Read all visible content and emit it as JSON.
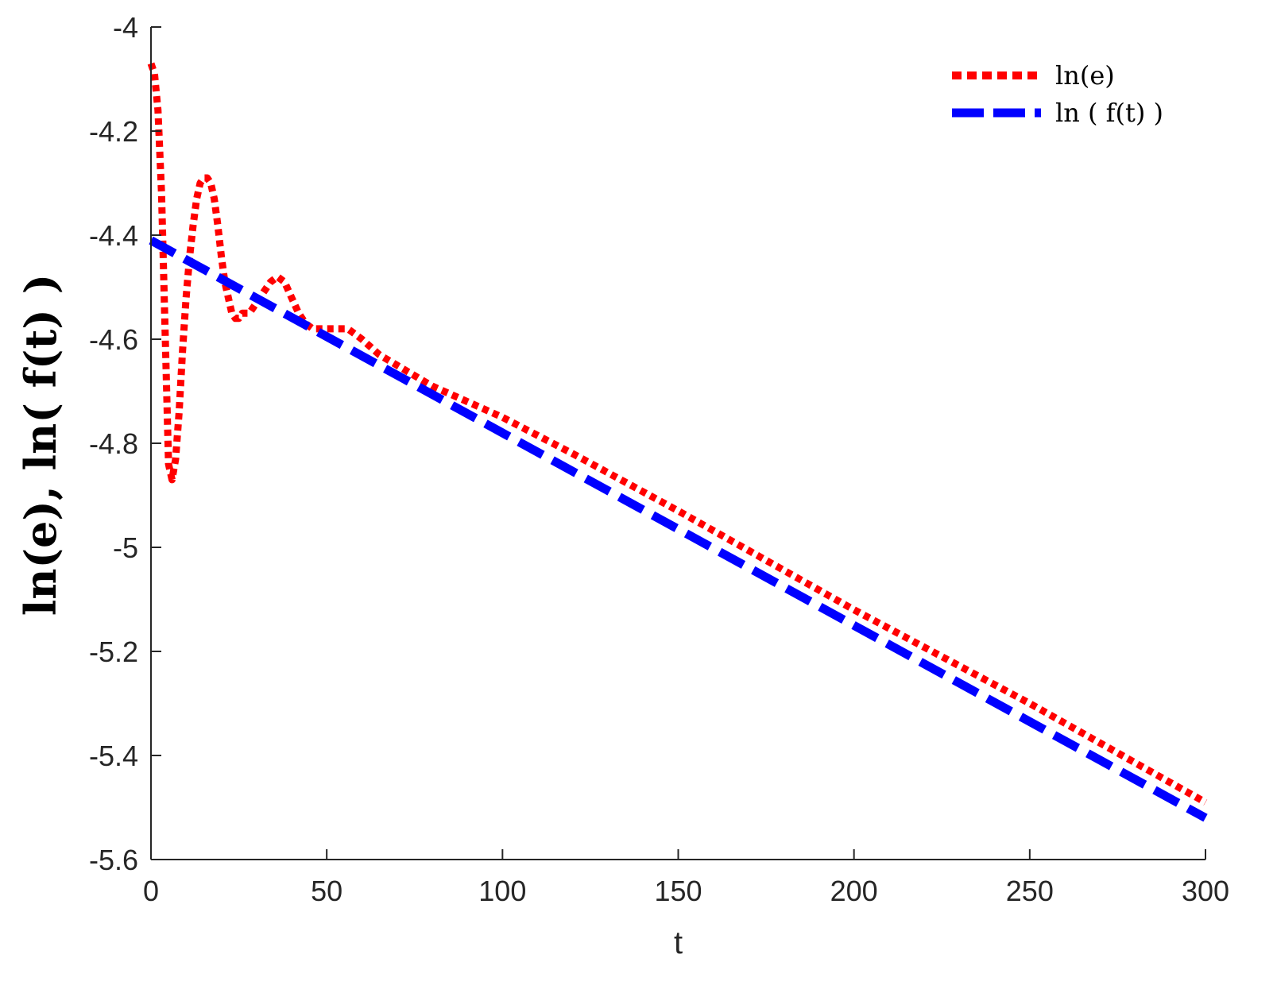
{
  "chart_data": {
    "type": "line",
    "title": "",
    "xlabel": "t",
    "ylabel": "ln(e), ln( f(t) )",
    "xlim": [
      0,
      300
    ],
    "ylim": [
      -5.6,
      -4
    ],
    "xticks": [
      0,
      50,
      100,
      150,
      200,
      250,
      300
    ],
    "yticks": [
      -4,
      -4.2,
      -4.4,
      -4.6,
      -4.8,
      -5,
      -5.2,
      -5.4,
      -5.6
    ],
    "xtick_labels": [
      "0",
      "50",
      "100",
      "150",
      "200",
      "250",
      "300"
    ],
    "ytick_labels": [
      "-4",
      "-4.2",
      "-4.4",
      "-4.6",
      "-4.8",
      "-5",
      "-5.2",
      "-5.4",
      "-5.6"
    ],
    "grid": false,
    "legend_position": "top-right",
    "series": [
      {
        "name": "ln(e)",
        "color": "#ff0000",
        "style": "dotted",
        "x": [
          0,
          1,
          2,
          3,
          4,
          5,
          6,
          7,
          8,
          9,
          10,
          11,
          12,
          13,
          14,
          15,
          16,
          17,
          18,
          19,
          20,
          21,
          22,
          23,
          24,
          25,
          26,
          27,
          28,
          29,
          30,
          32,
          34,
          36,
          38,
          40,
          42,
          44,
          46,
          48,
          50,
          52,
          54,
          56,
          58,
          60,
          65,
          70,
          80,
          90,
          100,
          120,
          150,
          200,
          250,
          300
        ],
        "y": [
          -4.07,
          -4.09,
          -4.16,
          -4.32,
          -4.58,
          -4.84,
          -4.87,
          -4.83,
          -4.74,
          -4.62,
          -4.52,
          -4.44,
          -4.38,
          -4.33,
          -4.3,
          -4.29,
          -4.29,
          -4.3,
          -4.33,
          -4.38,
          -4.44,
          -4.49,
          -4.52,
          -4.55,
          -4.56,
          -4.56,
          -4.55,
          -4.55,
          -4.55,
          -4.54,
          -4.53,
          -4.51,
          -4.49,
          -4.48,
          -4.49,
          -4.52,
          -4.55,
          -4.57,
          -4.58,
          -4.58,
          -4.58,
          -4.58,
          -4.58,
          -4.58,
          -4.59,
          -4.6,
          -4.63,
          -4.65,
          -4.69,
          -4.72,
          -4.75,
          -4.82,
          -4.93,
          -5.12,
          -5.3,
          -5.49
        ]
      },
      {
        "name": "ln ( f(t) )",
        "color": "#0000ff",
        "style": "dashed",
        "x": [
          0,
          300
        ],
        "y": [
          -4.41,
          -5.52
        ]
      }
    ]
  }
}
